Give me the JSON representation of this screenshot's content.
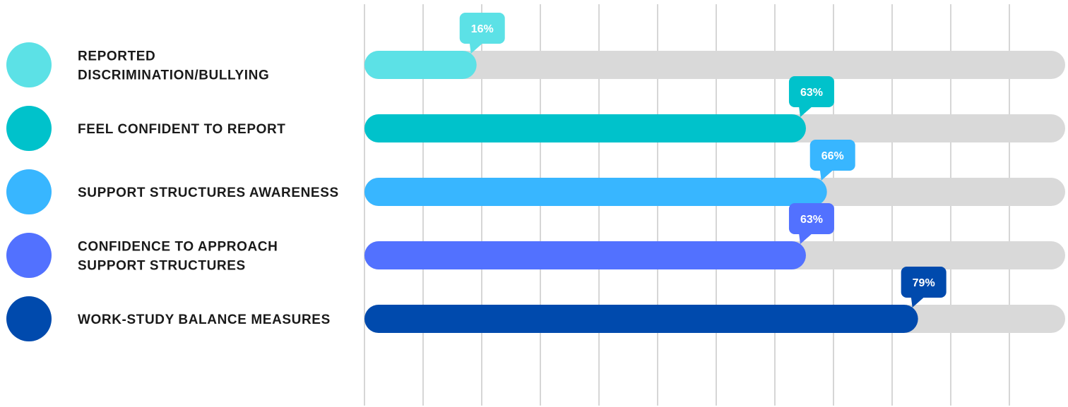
{
  "chart_data": {
    "type": "bar",
    "orientation": "horizontal",
    "value_suffix": "%",
    "xlim": [
      0,
      100
    ],
    "grid": true,
    "track_color": "#d9d9d9",
    "grid_color": "#c8c8c8",
    "categories": [
      [
        "REPORTED",
        "DISCRIMINATION/BULLYING"
      ],
      [
        "FEEL CONFIDENT TO REPORT"
      ],
      [
        "SUPPORT STRUCTURES AWARENESS"
      ],
      [
        "CONFIDENCE TO APPROACH",
        "SUPPORT STRUCTURES"
      ],
      [
        "WORK-STUDY BALANCE MEASURES"
      ]
    ],
    "values": [
      16,
      63,
      66,
      63,
      79
    ],
    "data_labels": [
      "16%",
      "63%",
      "66%",
      "63%",
      "79%"
    ],
    "colors": [
      "#5ce1e6",
      "#00c2cb",
      "#38b6ff",
      "#5271ff",
      "#004aad"
    ]
  }
}
